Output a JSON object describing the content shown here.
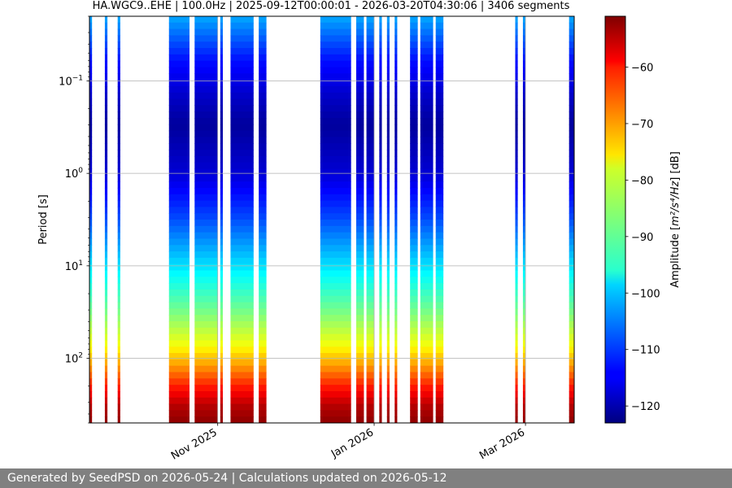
{
  "chart_data": {
    "type": "heatmap",
    "title": "HA.WGC9..EHE | 100.0Hz | 2025-09-12T00:00:01 - 2026-03-20T04:30:06 | 3406 segments",
    "xlabel": "",
    "ylabel": "Period [s]",
    "y_scale": "log",
    "y_inverted": true,
    "ylim": [
      500,
      0.02
    ],
    "y_ticks": [
      {
        "value": 0.1,
        "base": "10",
        "exp": "−1"
      },
      {
        "value": 1,
        "base": "10",
        "exp": "0"
      },
      {
        "value": 10,
        "base": "10",
        "exp": "1"
      },
      {
        "value": 100,
        "base": "10",
        "exp": "2"
      }
    ],
    "xlim": [
      "2025-09-12",
      "2026-03-20"
    ],
    "x_ticks": [
      {
        "date": "2025-11-01",
        "label": "Nov 2025"
      },
      {
        "date": "2026-01-01",
        "label": "Jan 2026"
      },
      {
        "date": "2026-03-01",
        "label": "Mar 2026"
      }
    ],
    "grid": true,
    "colormap": "jet",
    "colorbar": {
      "label_prefix": "Amplitude [",
      "label_math": "m²/s⁴/Hz",
      "label_suffix": "] [dB]",
      "range": [
        -123,
        -51
      ],
      "ticks": [
        -60,
        -70,
        -80,
        -90,
        -100,
        -110,
        -120
      ]
    },
    "data_periods": [
      {
        "start": "2025-09-12",
        "end": "2025-09-13"
      },
      {
        "start": "2025-09-18",
        "end": "2025-09-19"
      },
      {
        "start": "2025-09-23",
        "end": "2025-09-24"
      },
      {
        "start": "2025-10-13",
        "end": "2025-10-21"
      },
      {
        "start": "2025-10-23",
        "end": "2025-11-01"
      },
      {
        "start": "2025-11-02",
        "end": "2025-11-03"
      },
      {
        "start": "2025-11-06",
        "end": "2025-11-15"
      },
      {
        "start": "2025-11-17",
        "end": "2025-11-20"
      },
      {
        "start": "2025-12-11",
        "end": "2025-12-23"
      },
      {
        "start": "2025-12-25",
        "end": "2025-12-28"
      },
      {
        "start": "2025-12-29",
        "end": "2026-01-01"
      },
      {
        "start": "2026-01-03",
        "end": "2026-01-04"
      },
      {
        "start": "2026-01-06",
        "end": "2026-01-07"
      },
      {
        "start": "2026-01-09",
        "end": "2026-01-10"
      },
      {
        "start": "2026-01-15",
        "end": "2026-01-18"
      },
      {
        "start": "2026-01-19",
        "end": "2026-01-24"
      },
      {
        "start": "2026-01-25",
        "end": "2026-01-28"
      },
      {
        "start": "2026-02-25",
        "end": "2026-02-26"
      },
      {
        "start": "2026-02-28",
        "end": "2026-03-01"
      },
      {
        "start": "2026-03-18",
        "end": "2026-03-20"
      }
    ],
    "spectrum": [
      {
        "period": 0.02,
        "db": -102
      },
      {
        "period": 0.03,
        "db": -106
      },
      {
        "period": 0.06,
        "db": -113
      },
      {
        "period": 0.15,
        "db": -118
      },
      {
        "period": 0.3,
        "db": -121
      },
      {
        "period": 1.0,
        "db": -117
      },
      {
        "period": 3.0,
        "db": -109
      },
      {
        "period": 10,
        "db": -98
      },
      {
        "period": 30,
        "db": -88
      },
      {
        "period": 70,
        "db": -79
      },
      {
        "period": 120,
        "db": -71
      },
      {
        "period": 200,
        "db": -62
      },
      {
        "period": 320,
        "db": -55
      },
      {
        "period": 500,
        "db": -52
      }
    ]
  },
  "footer": {
    "text": "Generated by SeedPSD on 2026-05-24 | Calculations updated on 2026-05-12"
  }
}
